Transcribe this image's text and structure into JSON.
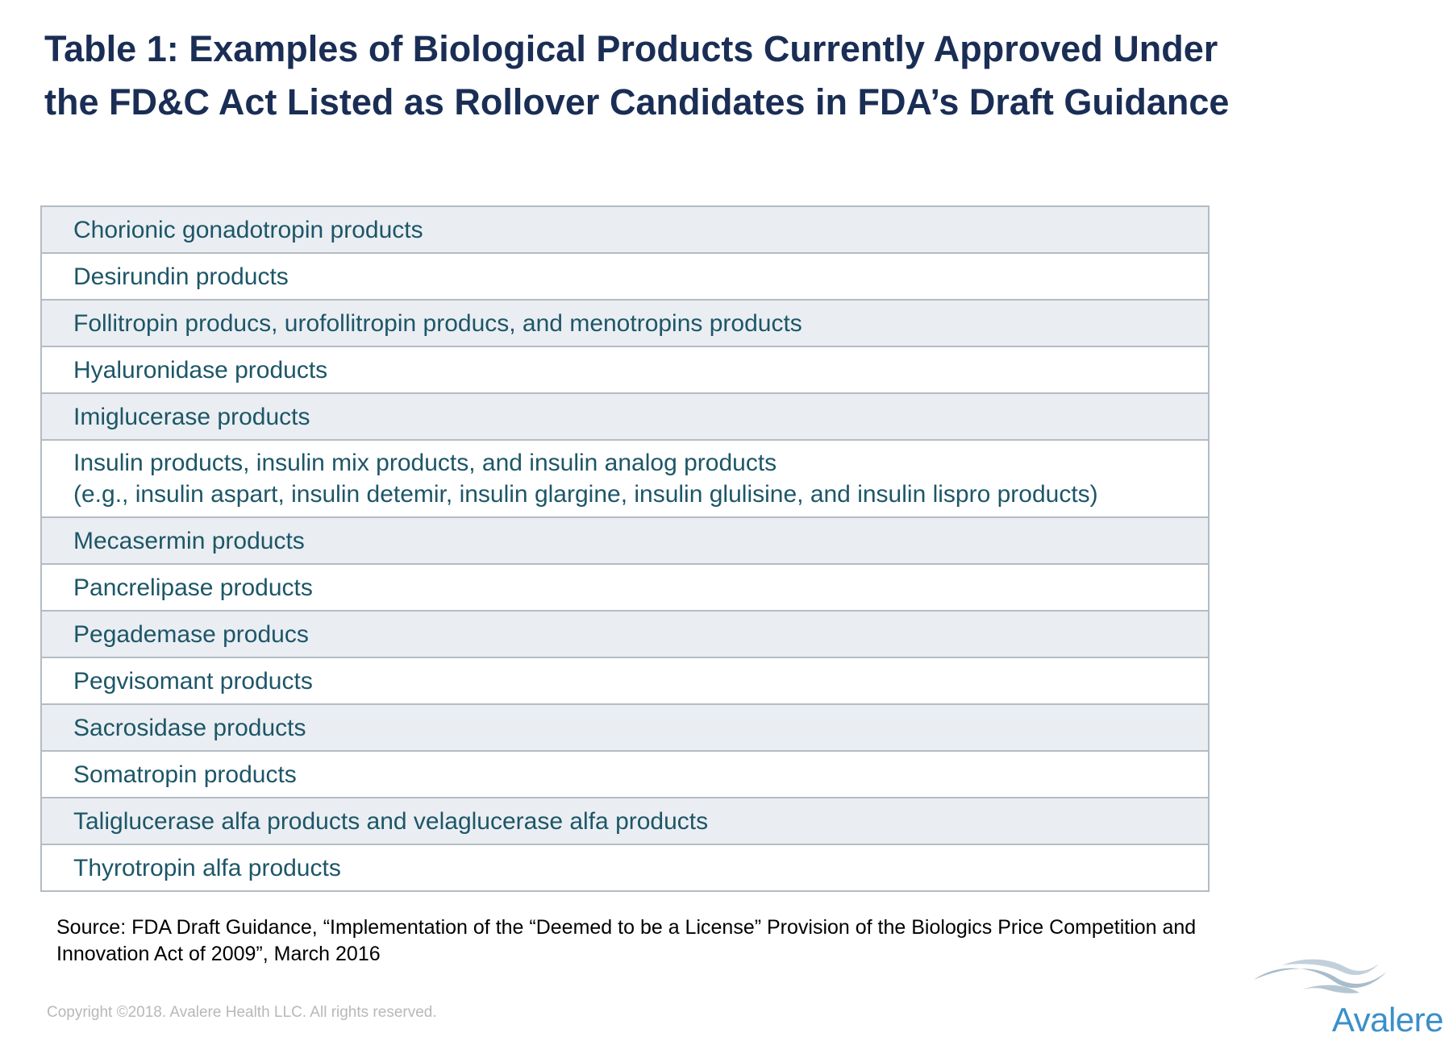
{
  "title": "Table 1: Examples of Biological Products Currently Approved Under the FD&C Act Listed as Rollover Candidates in FDA’s Draft Guidance",
  "rows": [
    {
      "text": "Chorionic gonadotropin products"
    },
    {
      "text": "Desirundin products"
    },
    {
      "text": "Follitropin producs, urofollitropin producs, and menotropins products"
    },
    {
      "text": "Hyaluronidase products"
    },
    {
      "text": "Imiglucerase products"
    },
    {
      "text": "Insulin products, insulin mix products, and insulin analog products",
      "subtext": "(e.g., insulin aspart, insulin detemir, insulin glargine, insulin glulisine, and insulin lispro products)"
    },
    {
      "text": "Mecasermin products"
    },
    {
      "text": "Pancrelipase products"
    },
    {
      "text": "Pegademase producs"
    },
    {
      "text": "Pegvisomant products"
    },
    {
      "text": "Sacrosidase products"
    },
    {
      "text": "Somatropin products"
    },
    {
      "text": "Taliglucerase alfa products and velaglucerase alfa products"
    },
    {
      "text": "Thyrotropin alfa products"
    }
  ],
  "source": "Source: FDA Draft Guidance, “Implementation of the “Deemed to be a License” Provision of the Biologics Price Competition and Innovation Act of 2009”, March 2016",
  "copyright": "Copyright ©2018. Avalere Health LLC. All rights reserved.",
  "logo": {
    "name": "Avalere",
    "icon": "avalere-wave-logo-icon",
    "color": "#3a8fc9"
  },
  "colors": {
    "title": "#1a2e55",
    "row_text": "#1d5668",
    "row_shade": "#eaeef2",
    "border": "#b4bcc3"
  }
}
